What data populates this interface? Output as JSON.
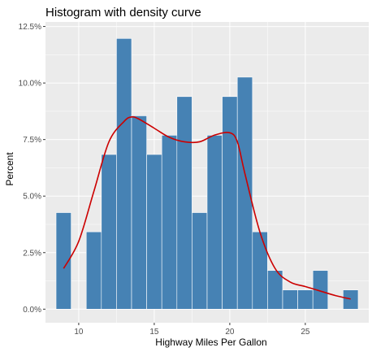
{
  "chart_data": {
    "type": "bar",
    "subtype": "histogram-with-density",
    "title": "Histogram with density curve",
    "xlabel": "Highway Miles Per Gallon",
    "ylabel": "Percent",
    "xlim": [
      7.8,
      29.2
    ],
    "ylim": [
      -0.6,
      12.7
    ],
    "x_ticks": [
      10,
      15,
      20,
      25
    ],
    "x_tick_labels": [
      "10",
      "15",
      "20",
      "25"
    ],
    "y_ticks": [
      0,
      2.5,
      5,
      7.5,
      10,
      12.5
    ],
    "y_tick_labels": [
      "0.0%",
      "2.5%",
      "5.0%",
      "7.5%",
      "10.0%",
      "12.5%"
    ],
    "grid": true,
    "bin_width": 1,
    "bars": [
      {
        "x": 9,
        "value": 4.27
      },
      {
        "x": 10,
        "value": 0
      },
      {
        "x": 11,
        "value": 3.42
      },
      {
        "x": 12,
        "value": 6.84
      },
      {
        "x": 13,
        "value": 11.97
      },
      {
        "x": 14,
        "value": 8.55
      },
      {
        "x": 15,
        "value": 6.84
      },
      {
        "x": 16,
        "value": 7.69
      },
      {
        "x": 17,
        "value": 9.4
      },
      {
        "x": 18,
        "value": 4.27
      },
      {
        "x": 19,
        "value": 7.69
      },
      {
        "x": 20,
        "value": 9.4
      },
      {
        "x": 21,
        "value": 10.26
      },
      {
        "x": 22,
        "value": 3.42
      },
      {
        "x": 23,
        "value": 1.71
      },
      {
        "x": 24,
        "value": 0.85
      },
      {
        "x": 25,
        "value": 0.85
      },
      {
        "x": 26,
        "value": 1.71
      },
      {
        "x": 27,
        "value": 0
      },
      {
        "x": 28,
        "value": 0.85
      }
    ],
    "density": {
      "x": [
        9,
        10,
        11,
        12,
        13,
        13.5,
        14,
        15,
        16,
        17,
        18,
        19,
        20,
        20.5,
        21,
        22,
        23,
        24,
        25,
        26,
        27,
        28
      ],
      "y": [
        1.8,
        3.0,
        5.2,
        7.4,
        8.3,
        8.5,
        8.4,
        8.0,
        7.6,
        7.4,
        7.4,
        7.7,
        7.8,
        7.4,
        6.0,
        3.4,
        1.8,
        1.2,
        1.0,
        0.8,
        0.6,
        0.45
      ]
    },
    "colors": {
      "panel_background": "#ebebeb",
      "grid_major": "#ffffff",
      "bar_fill": "#4682b4",
      "bar_outline": "#ffffff",
      "density_line": "#cc0000"
    }
  }
}
